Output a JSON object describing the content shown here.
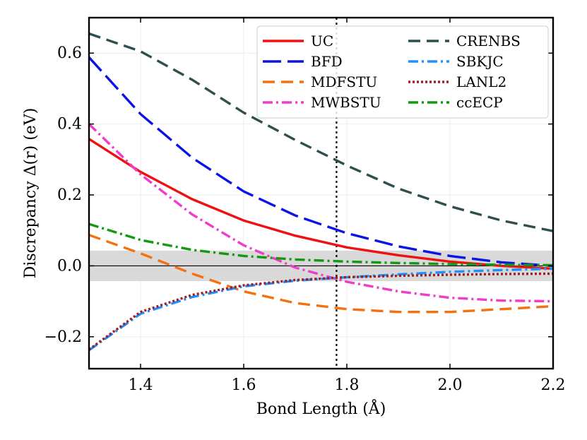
{
  "chart_data": {
    "type": "line",
    "title": "",
    "xlabel": "Bond Length (Å)",
    "ylabel": "Discrepancy Δ(r) (eV)",
    "xlim": [
      1.3,
      2.2
    ],
    "ylim": [
      -0.29,
      0.7
    ],
    "xticks": [
      1.4,
      1.6,
      1.8,
      2.0,
      2.2
    ],
    "xtick_labels": [
      "1.4",
      "1.6",
      "1.8",
      "2.0",
      "2.2"
    ],
    "yticks": [
      -0.2,
      0.0,
      0.2,
      0.4,
      0.6
    ],
    "ytick_labels": [
      "−0.2",
      "0.0",
      "0.2",
      "0.4",
      "0.6"
    ],
    "grid": true,
    "legend_position": "top-right",
    "band": [
      -0.043,
      0.043
    ],
    "zero_line": 0.0,
    "vertical_line_x": 1.78,
    "x": [
      1.3,
      1.4,
      1.5,
      1.6,
      1.7,
      1.8,
      1.9,
      2.0,
      2.1,
      2.2
    ],
    "series": [
      {
        "name": "UC",
        "color": "#ee1111",
        "dash": "solid",
        "values": [
          0.358,
          0.265,
          0.188,
          0.128,
          0.085,
          0.052,
          0.03,
          0.012,
          0.0,
          -0.008
        ]
      },
      {
        "name": "BFD",
        "color": "#0a14e6",
        "dash": "longdash",
        "values": [
          0.588,
          0.428,
          0.305,
          0.21,
          0.142,
          0.092,
          0.055,
          0.028,
          0.01,
          0.0
        ]
      },
      {
        "name": "MDFSTU",
        "color": "#f5700f",
        "dash": "dash",
        "values": [
          0.087,
          0.035,
          -0.022,
          -0.072,
          -0.105,
          -0.122,
          -0.13,
          -0.13,
          -0.122,
          -0.114
        ]
      },
      {
        "name": "MWBSTU",
        "color": "#f03cc8",
        "dash": "dashdot",
        "values": [
          0.4,
          0.258,
          0.145,
          0.058,
          -0.005,
          -0.045,
          -0.072,
          -0.09,
          -0.098,
          -0.1
        ]
      },
      {
        "name": "CRENBS",
        "color": "#2f4f4f",
        "dash": "dash",
        "values": [
          0.655,
          0.605,
          0.525,
          0.432,
          0.355,
          0.283,
          0.218,
          0.168,
          0.128,
          0.098
        ]
      },
      {
        "name": "SBKJC",
        "color": "#1e90ff",
        "dash": "dashdot",
        "values": [
          -0.238,
          -0.135,
          -0.088,
          -0.058,
          -0.042,
          -0.032,
          -0.024,
          -0.017,
          -0.012,
          -0.008
        ]
      },
      {
        "name": "LANL2",
        "color": "#a01e1e",
        "dash": "dot",
        "values": [
          -0.236,
          -0.13,
          -0.082,
          -0.055,
          -0.04,
          -0.032,
          -0.028,
          -0.025,
          -0.023,
          -0.022
        ]
      },
      {
        "name": "ccECP",
        "color": "#119911",
        "dash": "dashdot",
        "values": [
          0.118,
          0.073,
          0.045,
          0.028,
          0.018,
          0.012,
          0.008,
          0.005,
          0.003,
          0.002
        ]
      }
    ]
  }
}
